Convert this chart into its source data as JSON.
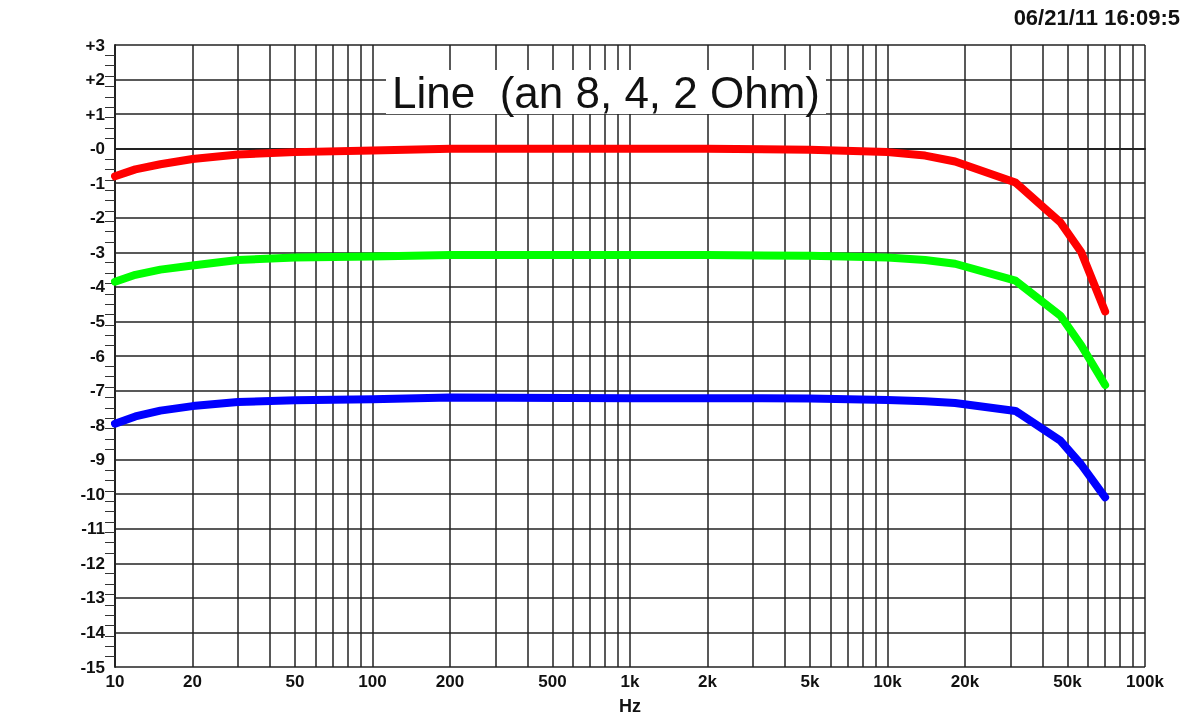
{
  "chart_data": {
    "type": "line",
    "title": "Line  (an 8, 4, 2 Ohm)",
    "xlabel": "Hz",
    "log": "x",
    "grid": true,
    "marker": "none",
    "line_style": "solid",
    "annotations": [
      "06/21/11 16:09:5"
    ],
    "x": [
      10,
      12,
      15,
      20,
      30,
      50,
      100,
      200,
      1000,
      2000,
      5000,
      10000,
      14000,
      18300,
      31400,
      46900,
      56500,
      70000
    ],
    "series": [
      {
        "color": "#ff0000",
        "values": [
          -0.8,
          -0.6,
          -0.45,
          -0.3,
          -0.17,
          -0.1,
          -0.05,
          0,
          0,
          0,
          -0.03,
          -0.1,
          -0.2,
          -0.37,
          -0.98,
          -2.13,
          -2.99,
          -4.71
        ]
      },
      {
        "color": "#00ff00",
        "values": [
          -3.85,
          -3.65,
          -3.5,
          -3.38,
          -3.22,
          -3.15,
          -3.12,
          -3.08,
          -3.08,
          -3.08,
          -3.1,
          -3.15,
          -3.22,
          -3.33,
          -3.82,
          -4.83,
          -5.69,
          -6.84
        ]
      },
      {
        "color": "#0000ff",
        "values": [
          -7.96,
          -7.75,
          -7.58,
          -7.45,
          -7.33,
          -7.28,
          -7.25,
          -7.2,
          -7.22,
          -7.22,
          -7.23,
          -7.27,
          -7.31,
          -7.36,
          -7.59,
          -8.45,
          -9.14,
          -10.09
        ]
      }
    ],
    "xlim": [
      10,
      100000
    ],
    "xticks": [
      10,
      20,
      {
        "value": 30,
        "label": null
      },
      {
        "value": 40,
        "label": null
      },
      50,
      {
        "value": 60,
        "label": null
      },
      {
        "value": 70,
        "label": null
      },
      {
        "value": 80,
        "label": null
      },
      {
        "value": 90,
        "label": null
      },
      100,
      200,
      {
        "value": 300,
        "label": null
      },
      {
        "value": 400,
        "label": null
      },
      500,
      {
        "value": 600,
        "label": null
      },
      {
        "value": 700,
        "label": null
      },
      {
        "value": 800,
        "label": null
      },
      {
        "value": 900,
        "label": null
      },
      {
        "value": 1000,
        "label": "1k"
      },
      {
        "value": 2000,
        "label": "2k"
      },
      {
        "value": 3000,
        "label": null
      },
      {
        "value": 4000,
        "label": null
      },
      {
        "value": 5000,
        "label": "5k"
      },
      {
        "value": 6000,
        "label": null
      },
      {
        "value": 7000,
        "label": null
      },
      {
        "value": 8000,
        "label": null
      },
      {
        "value": 9000,
        "label": null
      },
      {
        "value": 10000,
        "label": "10k"
      },
      {
        "value": 20000,
        "label": "20k"
      },
      {
        "value": 30000,
        "label": null
      },
      {
        "value": 40000,
        "label": null
      },
      {
        "value": 50000,
        "label": "50k"
      },
      {
        "value": 60000,
        "label": null
      },
      {
        "value": 70000,
        "label": null
      },
      {
        "value": 80000,
        "label": null
      },
      {
        "value": 90000,
        "label": null
      },
      {
        "value": 100000,
        "label": "100k"
      }
    ],
    "ylim": [
      -15,
      3
    ],
    "yticks": [
      {
        "value": 3,
        "label": "+3"
      },
      {
        "value": 2,
        "label": "+2"
      },
      {
        "value": 1,
        "label": "+1"
      },
      {
        "value": 0,
        "label": "-0"
      },
      -1,
      -2,
      -3,
      -4,
      -5,
      -6,
      -7,
      -8,
      -9,
      -10,
      -11,
      -12,
      -13,
      -14,
      -15
    ]
  }
}
